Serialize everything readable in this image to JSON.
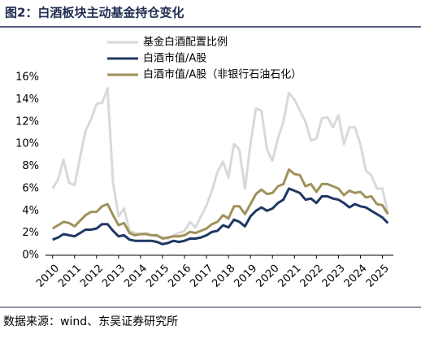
{
  "title": "图2：白酒板块主动基金持仓变化",
  "source": "数据来源：wind、东吴证券研究所",
  "chart_data": {
    "type": "line",
    "x": [
      2010,
      2010.25,
      2010.5,
      2010.75,
      2011,
      2011.25,
      2011.5,
      2011.75,
      2012,
      2012.25,
      2012.5,
      2012.75,
      2013,
      2013.25,
      2013.5,
      2013.75,
      2014,
      2014.25,
      2014.5,
      2014.75,
      2015,
      2015.25,
      2015.5,
      2015.75,
      2016,
      2016.25,
      2016.5,
      2016.75,
      2017,
      2017.25,
      2017.5,
      2017.75,
      2018,
      2018.25,
      2018.5,
      2018.75,
      2019,
      2019.25,
      2019.5,
      2019.75,
      2020,
      2020.25,
      2020.5,
      2020.75,
      2021,
      2021.25,
      2021.5,
      2021.75,
      2022,
      2022.25,
      2022.5,
      2022.75,
      2023,
      2023.25,
      2023.5,
      2023.75,
      2024,
      2024.25,
      2024.5,
      2024.75,
      2025,
      2025.25
    ],
    "series": [
      {
        "name": "基金白酒配置比例",
        "color": "#d9d9d9",
        "values": [
          6.0,
          6.8,
          8.6,
          6.5,
          6.3,
          8.8,
          11.2,
          12.2,
          13.6,
          13.7,
          15.0,
          6.5,
          3.5,
          4.2,
          2.2,
          2.0,
          1.9,
          2.0,
          1.8,
          1.7,
          1.6,
          1.5,
          1.8,
          2.0,
          2.2,
          3.0,
          2.5,
          3.5,
          4.5,
          5.8,
          7.5,
          8.4,
          7.0,
          10.0,
          9.5,
          6.0,
          10.0,
          13.2,
          13.0,
          9.5,
          8.5,
          10.5,
          12.0,
          14.6,
          14.0,
          13.0,
          12.0,
          10.3,
          10.5,
          12.3,
          12.4,
          11.5,
          12.6,
          10.0,
          11.5,
          11.5,
          10.0,
          7.6,
          7.2,
          6.0,
          6.0,
          3.8
        ]
      },
      {
        "name": "白酒市值/A股",
        "color": "#1f3864",
        "values": [
          1.4,
          1.6,
          1.9,
          1.8,
          1.7,
          2.0,
          2.3,
          2.3,
          2.4,
          2.8,
          2.8,
          2.2,
          1.7,
          1.8,
          1.4,
          1.3,
          1.3,
          1.3,
          1.3,
          1.2,
          1.0,
          1.1,
          1.3,
          1.2,
          1.3,
          1.5,
          1.5,
          1.6,
          1.8,
          2.1,
          2.2,
          2.7,
          2.5,
          3.2,
          3.0,
          2.6,
          3.5,
          4.0,
          4.3,
          4.0,
          4.2,
          4.7,
          5.0,
          6.0,
          5.8,
          5.6,
          5.0,
          5.1,
          4.7,
          5.3,
          5.3,
          5.1,
          5.0,
          4.7,
          4.3,
          4.6,
          4.4,
          4.3,
          4.0,
          3.7,
          3.4,
          2.9
        ]
      },
      {
        "name": "白酒市值/A股（非银行石油石化）",
        "color": "#a0925a",
        "values": [
          2.4,
          2.7,
          3.0,
          2.9,
          2.6,
          3.1,
          3.6,
          3.9,
          3.9,
          4.4,
          4.6,
          3.6,
          2.7,
          2.9,
          2.0,
          1.8,
          1.9,
          1.9,
          1.8,
          1.8,
          1.5,
          1.6,
          1.7,
          1.7,
          1.8,
          2.1,
          2.0,
          2.2,
          2.4,
          2.8,
          3.0,
          3.6,
          3.3,
          4.4,
          4.4,
          3.7,
          4.6,
          5.5,
          5.9,
          5.5,
          5.6,
          6.2,
          6.4,
          7.7,
          7.3,
          7.2,
          6.2,
          6.4,
          5.7,
          6.4,
          6.4,
          6.2,
          6.0,
          5.4,
          5.8,
          5.6,
          5.7,
          5.2,
          5.3,
          4.6,
          4.5,
          3.7
        ]
      }
    ],
    "xlim": [
      2009.9,
      2025.5
    ],
    "xticks": [
      2010,
      2011,
      2012,
      2013,
      2014,
      2015,
      2016,
      2017,
      2018,
      2019,
      2020,
      2021,
      2022,
      2023,
      2024,
      2025
    ],
    "ylim": [
      0,
      16
    ],
    "yticks": [
      {
        "value": 0,
        "label": "0%"
      },
      {
        "value": 2,
        "label": "2%"
      },
      {
        "value": 4,
        "label": "4%"
      },
      {
        "value": 6,
        "label": "6%"
      },
      {
        "value": 8,
        "label": "8%"
      },
      {
        "value": 10,
        "label": "10%"
      },
      {
        "value": 12,
        "label": "12%"
      },
      {
        "value": 14,
        "label": "14%"
      },
      {
        "value": 16,
        "label": "16%"
      }
    ],
    "grid": false
  }
}
